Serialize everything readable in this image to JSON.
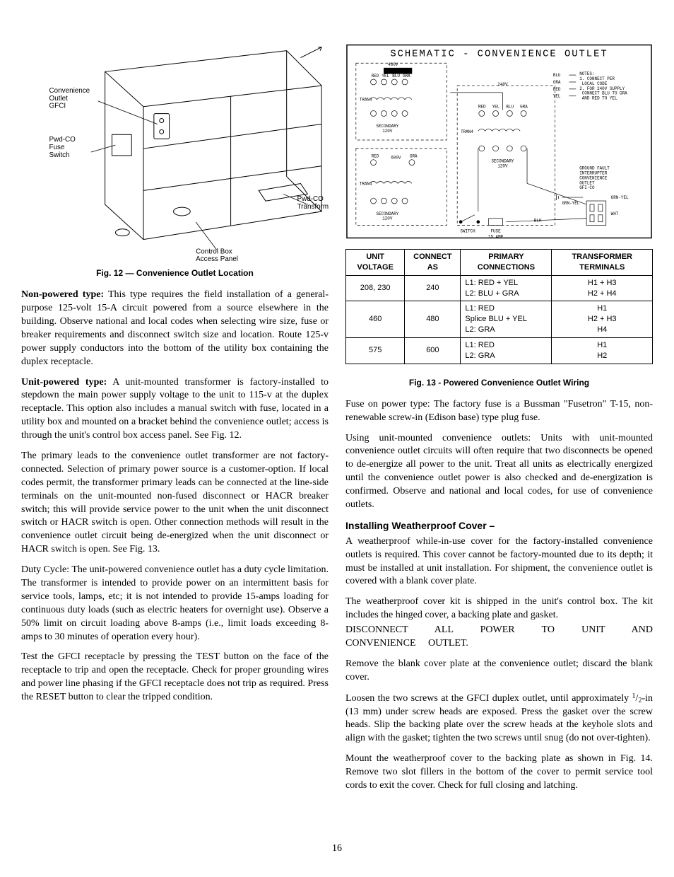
{
  "page_number": "16",
  "fig12": {
    "caption": "Fig. 12 — Convenience Outlet Location",
    "labels": {
      "gfci": "Convenience\nOutlet\nGFCI",
      "fuse": "Pwd-CO\nFuse\nSwitch",
      "xfmr": "Pwd-CO\nTransformer",
      "panel": "Control Box\nAccess Panel"
    }
  },
  "fig13": {
    "caption": "Fig. 13 - Powered Convenience Outlet Wiring",
    "schematic_title": "SCHEMATIC - CONVENIENCE OUTLET",
    "labels": {
      "v460": "460V",
      "v240": "240V",
      "v600": "600V",
      "tran4": "TRAN4",
      "secondary": "SECONDARY\n120V",
      "switch": "SWITCH",
      "fuse": "FUSE",
      "amp": "15 AMP",
      "gfci": "GROUND FAULT\nINTERRUPTER\nCONVENIENCE\nOUTLET\nGFI-CO",
      "notes": "NOTES:\n1. CONNECT PER\n   LOCAL CODE\n2. FOR 240V SUPPLY\n   CONNECT BLU TO GRA\n   AND RED TO YEL",
      "red": "RED",
      "yel": "YEL",
      "blu": "BLU",
      "gra": "GRA",
      "blk": "BLK",
      "wht": "WHT",
      "grn_yel": "GRN-YEL"
    },
    "table": {
      "headers": [
        "UNIT VOLTAGE",
        "CONNECT AS",
        "PRIMARY CONNECTIONS",
        "TRANSFORMER TERMINALS"
      ],
      "rows": [
        {
          "uv": "208, 230",
          "ca": "240",
          "pc": "L1: RED + YEL\nL2: BLU + GRA",
          "tt": "H1 + H3\nH2 + H4"
        },
        {
          "uv": "460",
          "ca": "480",
          "pc": "L1: RED\nSplice BLU + YEL\nL2: GRA",
          "tt": "H1\nH2 + H3\nH4"
        },
        {
          "uv": "575",
          "ca": "600",
          "pc": "L1: RED\nL2: GRA",
          "tt": "H1\nH2"
        }
      ]
    }
  },
  "left_paras": {
    "p1_lead": "Non-powered type:",
    "p1": " This type requires the field installation of a general-purpose 125-volt 15-A circuit powered from a source elsewhere in the building. Observe national and local codes when selecting wire size, fuse or breaker requirements and disconnect switch size and location. Route 125-v power supply conductors into the bottom of the utility box containing the duplex receptacle.",
    "p2_lead": "Unit-powered type:",
    "p2": " A unit-mounted transformer is factory-installed to stepdown the main power supply voltage to the unit to 115-v at the duplex receptacle. This option also includes a manual switch with fuse, located in a utility box and mounted on a bracket behind the convenience outlet; access is through the unit's control box access panel. See Fig. 12.",
    "p3": "The primary leads to the convenience outlet transformer are not factory-connected. Selection of primary power source is a customer-option. If local codes permit, the transformer primary leads can be connected at the line-side terminals on the unit-mounted non-fused disconnect or HACR breaker switch; this will provide service power to the unit when the unit disconnect switch or HACR switch is open. Other connection methods will result in the convenience outlet circuit being de-energized when the unit disconnect or HACR switch is open. See Fig. 13.",
    "p4": "Duty Cycle: The unit-powered convenience outlet has a duty cycle limitation. The transformer is intended to provide power on an intermittent basis for service tools, lamps, etc; it is not intended to provide 15-amps loading for continuous duty loads (such as electric heaters for overnight use). Observe a 50% limit on circuit loading above 8-amps (i.e., limit loads exceeding 8-amps to 30 minutes of operation every hour).",
    "p5": "Test the GFCI receptacle by pressing the TEST button on the face of the receptacle to trip and open the receptacle. Check for proper grounding wires and power line phasing if the GFCI receptacle does not trip as required. Press the RESET button to clear the tripped condition."
  },
  "right_paras": {
    "p1": "Fuse on power type: The factory fuse is a Bussman \"Fusetron\" T-15, non-renewable screw-in (Edison base) type plug fuse.",
    "p2": "Using unit-mounted convenience outlets: Units with unit-mounted convenience outlet circuits will often require that two disconnects be opened to de-energize all power to the unit. Treat all units as electrically energized until the convenience outlet power is also checked and de-energization is confirmed. Observe and national and local codes, for use of convenience outlets.",
    "h1": "Installing Weatherproof Cover –",
    "p3": "A weatherproof while-in-use cover for the factory-installed convenience outlets is required. This cover cannot be factory-mounted due to its depth; it must be installed at unit installation. For shipment, the convenience outlet is covered with a blank cover plate.",
    "p4": "The weatherproof cover kit is shipped in the unit's control box. The kit includes the hinged cover, a backing plate and gasket.",
    "p5": "DISCONNECT ALL POWER TO UNIT AND CONVENIENCE OUTLET.",
    "p6": "Remove the blank cover plate at the convenience outlet; discard the blank cover.",
    "p7a": "Loosen the two screws at the GFCI duplex outlet, until approximately ",
    "p7b": "-in (13 mm) under screw heads are exposed. Press the gasket over the screw heads. Slip the backing plate over the screw heads at the keyhole slots and align with the gasket; tighten the two screws until snug (do not over-tighten).",
    "p8": "Mount the weatherproof cover to the backing plate as shown in Fig. 14. Remove two slot fillers in the bottom of the cover to permit service tool cords to exit the cover. Check for full closing and latching."
  },
  "colors": {
    "line": "#000000",
    "bg": "#ffffff"
  }
}
